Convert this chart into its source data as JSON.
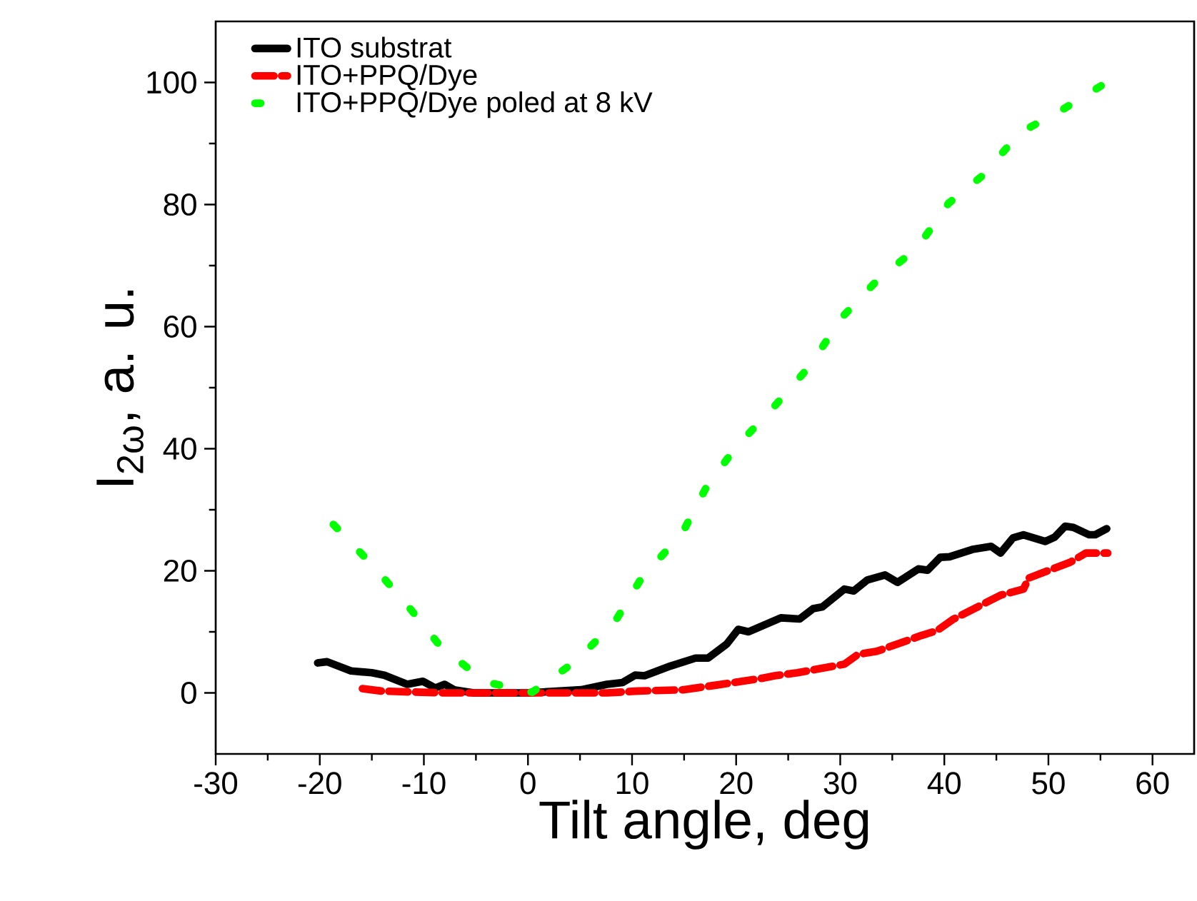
{
  "chart_data": {
    "type": "line",
    "xlabel": "Tilt angle, deg",
    "ylabel": "I$_{2ω}$, a. u.",
    "xlim": [
      -30,
      64
    ],
    "ylim": [
      -10,
      110
    ],
    "xticks": [
      -30,
      -20,
      -10,
      0,
      10,
      20,
      30,
      40,
      50,
      60
    ],
    "yticks": [
      0,
      20,
      40,
      60,
      80,
      100
    ],
    "legend": "top left",
    "grid": false,
    "series": [
      {
        "name": "ITO substrat",
        "color": "#000000",
        "line_style": "solid",
        "x": [
          -20.2,
          -19.3,
          -17,
          -15,
          -13.8,
          -11.6,
          -10.1,
          -8.9,
          -8,
          -7.1,
          -5.2,
          0,
          5.1,
          7.6,
          9.1,
          10.3,
          11.2,
          13.7,
          16.1,
          17.3,
          19.1,
          20.2,
          21.2,
          24.3,
          26.1,
          27.4,
          28.3,
          30.4,
          31.3,
          32.6,
          34.3,
          35.5,
          37.5,
          38.4,
          39.6,
          40.5,
          42.7,
          44.5,
          45.4,
          46.6,
          47.6,
          49.7,
          50.6,
          51.6,
          52.4,
          53.9,
          54.5,
          55.6
        ],
        "values": [
          4.9,
          5.1,
          3.6,
          3.3,
          2.9,
          1.4,
          1.9,
          0.8,
          1.4,
          0.5,
          0,
          0,
          0.5,
          1.4,
          1.7,
          2.9,
          2.8,
          4.4,
          5.7,
          5.7,
          8.0,
          10.4,
          10.0,
          12.3,
          12.1,
          13.8,
          14.1,
          17.0,
          16.7,
          18.5,
          19.3,
          18.1,
          20.3,
          20.1,
          22.2,
          22.3,
          23.5,
          24.0,
          22.9,
          25.4,
          25.9,
          24.8,
          25.5,
          27.3,
          27.1,
          25.9,
          25.9,
          26.9
        ]
      },
      {
        "name": "ITO+PPQ/Dye",
        "color": "#ff0000",
        "line_style": "dashed",
        "x": [
          -15.9,
          -14.1,
          -12.3,
          -8,
          -4.6,
          -0.4,
          3,
          7.6,
          10.6,
          14.9,
          18.2,
          22.5,
          23.7,
          25.9,
          30.4,
          31.7,
          33.5,
          37.8,
          39.3,
          40.8,
          45.4,
          47.6,
          48.1,
          52.1,
          53.6,
          55.7
        ],
        "values": [
          0.7,
          0.3,
          0.2,
          0,
          0,
          0,
          0,
          0,
          0.3,
          0.5,
          1.3,
          2.4,
          2.8,
          3.3,
          4.7,
          6.3,
          6.8,
          9.4,
          10.2,
          12.0,
          16.0,
          17.0,
          18.8,
          21.4,
          22.9,
          22.9
        ]
      },
      {
        "name": "ITO+PPQ/Dye poled at 8 kV",
        "color": "#00ff00",
        "line_style": "dotted",
        "x": [
          -18.7,
          -15.1,
          -11.8,
          -8.4,
          -4.1,
          0.4,
          4.6,
          8.3,
          10.9,
          14.8,
          17.2,
          20.1,
          23.4,
          27.2,
          30.1,
          33.5,
          37.4,
          40.4,
          43.8,
          47.2,
          51.3,
          55.3
        ],
        "values": [
          27.6,
          21.2,
          14.8,
          7.6,
          1.8,
          0.1,
          5.2,
          11.5,
          18.8,
          26.1,
          33.9,
          40.5,
          46.4,
          53.8,
          61.4,
          67.5,
          72.9,
          80.2,
          84.9,
          91.7,
          95.5,
          99.7
        ]
      }
    ]
  }
}
